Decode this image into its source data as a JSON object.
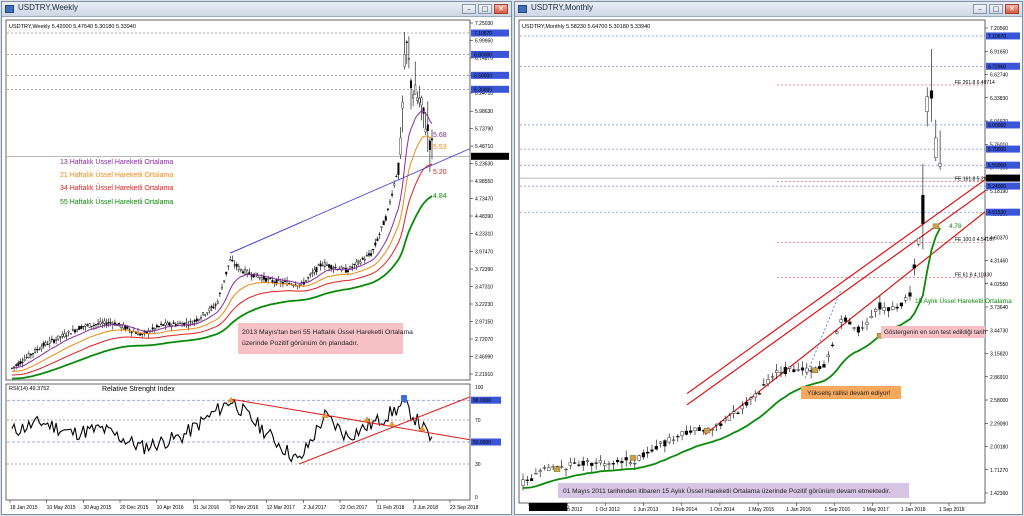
{
  "left": {
    "title": "USDTRY,Weekly",
    "header": "USDTRY,Weekly  5.42000 5.47640 5.30180 5.33940",
    "current_price": "5.33940",
    "price_labels": [
      "7.25030",
      "6.99950",
      "6.74870",
      "6.49790",
      "6.24710",
      "5.98630",
      "5.73790",
      "5.48710",
      "5.23630",
      "4.98550",
      "4.73470",
      "4.48390",
      "4.23310",
      "3.97470",
      "3.72390",
      "3.47310",
      "3.22230",
      "2.97150",
      "2.72070",
      "2.46990",
      "2.21910"
    ],
    "boxed_levels": [
      "7.10670",
      "6.80000",
      "6.50000",
      "6.30000"
    ],
    "ma_legend": [
      {
        "text": "13 Haftalık Üssel Hareketli Ortalama",
        "color": "#8a2aa0"
      },
      {
        "text": "21 Haftalık Üssel Hareketli Ortalama",
        "color": "#ee8a12"
      },
      {
        "text": "34 Haftalık Üssel Hareketli Ortalama",
        "color": "#e02020"
      },
      {
        "text": "55 Haftalık Üssel Hareketli Ortalama",
        "color": "#0a8a0a"
      }
    ],
    "ma_values": [
      "5.68",
      "5.53",
      "5.20",
      "4.84"
    ],
    "note": "2013 Mayıs'tan beri 55 Haftalık Üssel Hareketli Ortalama üzerinde Pozitif görünüm ön plandadır.",
    "rsi_header": "RSI(14) 49.3752",
    "rsi_title": "Relative Strenght Index",
    "rsi_scale": [
      "100",
      "88.0000",
      "70",
      "50.0000",
      "30",
      "0"
    ],
    "dates": [
      "18 Jan 2015",
      "10 May 2015",
      "30 Aug 2015",
      "20 Dec 2015",
      "10 Apr 2016",
      "31 Jul 2016",
      "20 Nov 2016",
      "12 Mar 2017",
      "2 Jul 2017",
      "22 Oct 2017",
      "11 Feb 2018",
      "3 Jun 2018",
      "23 Sep 2018"
    ]
  },
  "right": {
    "title": "USDTRY,Monthly",
    "header": "USDTRY,Monthly  5.58230 5.64700 5.30180 5.33940",
    "current_price": "5.33940",
    "price_labels": [
      "7.20560",
      "6.91650",
      "6.62740",
      "6.33830",
      "6.04920",
      "5.76010",
      "5.47100",
      "5.18190",
      "4.89280",
      "4.60370",
      "4.31460",
      "4.02550",
      "3.73640",
      "3.44730",
      "3.15820",
      "2.86910",
      "2.58000",
      "2.29090",
      "2.00180",
      "1.71270",
      "1.42360"
    ],
    "boxed_levels": [
      "7.10670",
      "6.72960",
      "6.00000",
      "5.70000",
      "5.50000",
      "5.24000",
      "4.91530"
    ],
    "fibs": [
      "FE 261.8 6.49714",
      "FE 161.8 5.29437",
      "FE 100.0 4.54167",
      "FE 61.8 4.10330"
    ],
    "ma_label": "15 Aylık Üssel Hareketli Ortalama",
    "ma_value": "4.78",
    "test_note": "Göstergenin en son test edildiği tarih",
    "trend_note": "Yükseliş rallisi devam ediyor!",
    "bottom_note": "01 Mayıs 2011 tarihinden itibaren 15 Aylık Üssel Hareketli Ortalama üzerinde Pozitif görünüm devam etmektedir.",
    "cursor_date": "1 Apr 2011 00:00",
    "dates": [
      "1 Apr 2011",
      "1 Feb 2012",
      "1 Oct 2012",
      "1 Jun 2013",
      "1 Feb 2014",
      "1 Oct 2014",
      "1 May 2015",
      "1 Jan 2016",
      "1 Sep 2016",
      "1 May 2017",
      "1 Jan 2018",
      "1 Sep 2018"
    ]
  },
  "colors": {
    "ma13": "#8a2aa0",
    "ma21": "#ee8a12",
    "ma34": "#e02020",
    "ma55": "#0a8a0a",
    "fib": "#e02020",
    "trend": "#e00000",
    "level": "#3a55d8"
  },
  "window_buttons": {
    "minimize": "–",
    "maximize": "□",
    "close": "✕"
  }
}
